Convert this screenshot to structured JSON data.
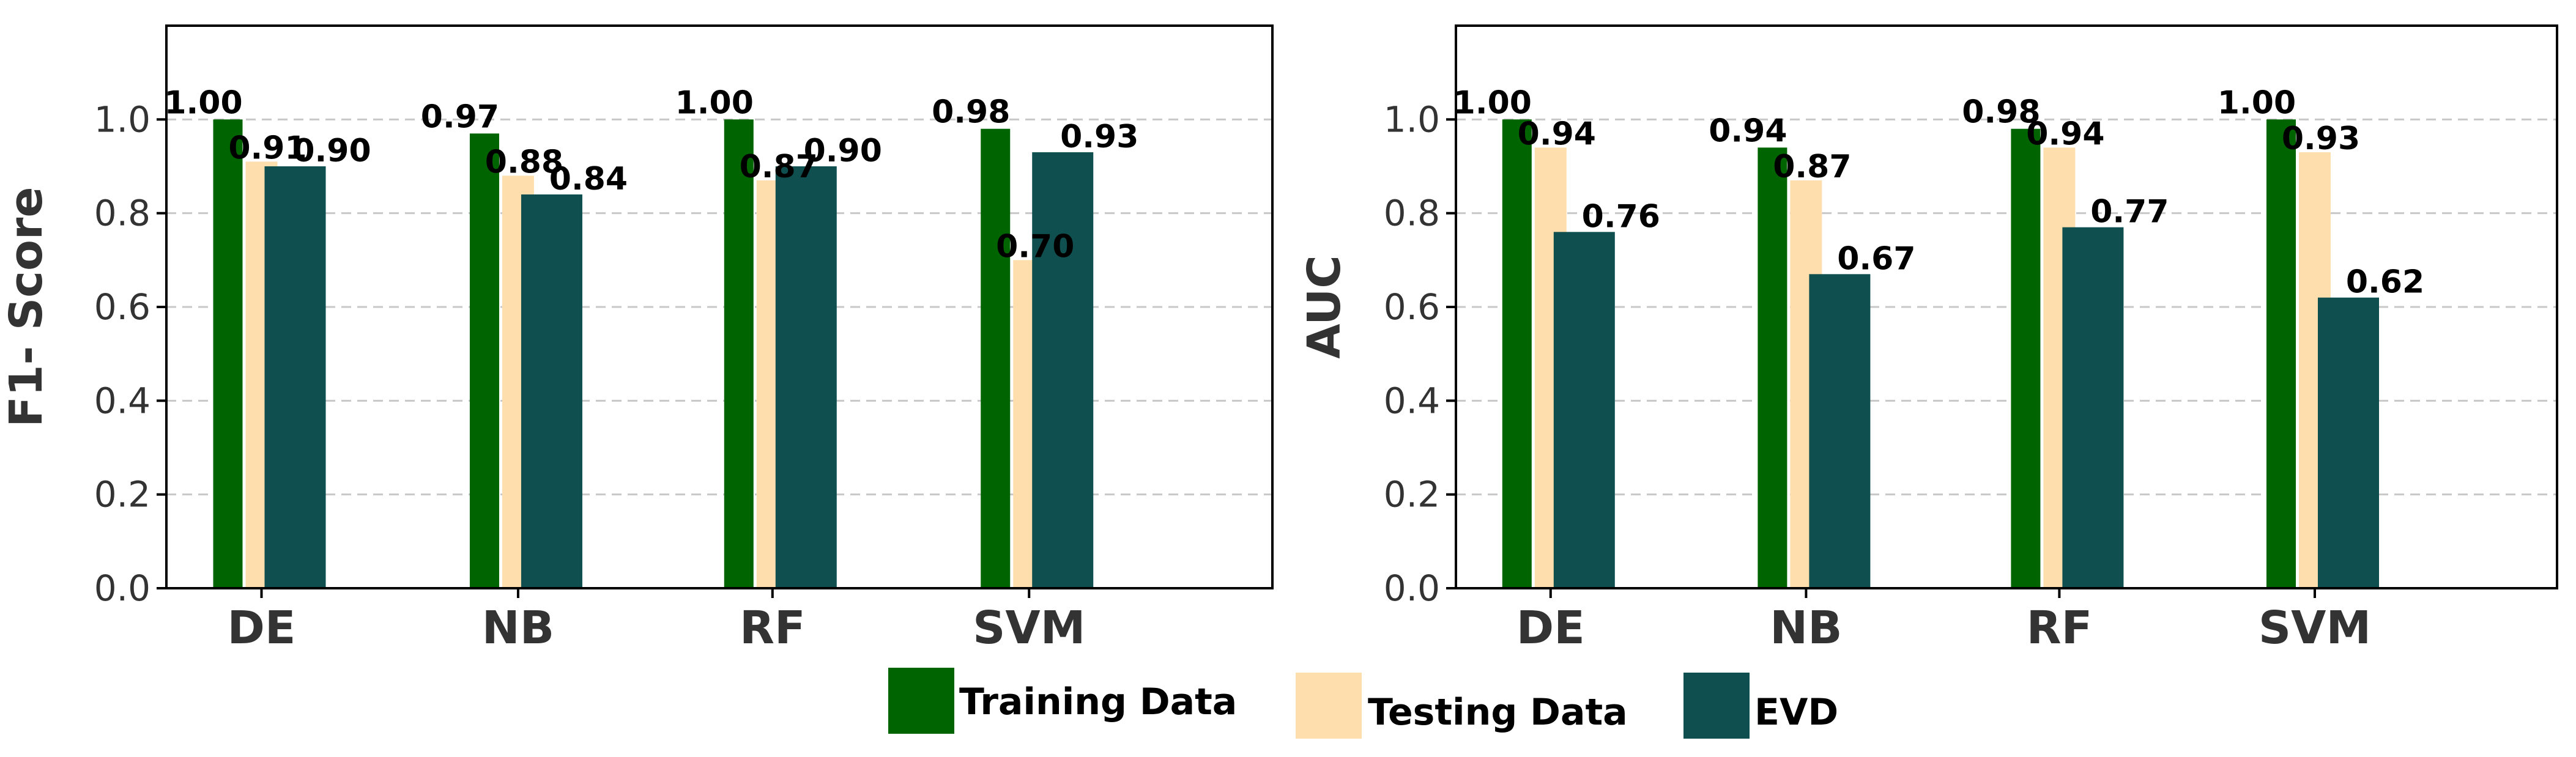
{
  "chart_data": [
    {
      "type": "bar",
      "ylabel": "F1- Score",
      "ylim": [
        0,
        1.2
      ],
      "yticks": [
        "0.0",
        "0.2",
        "0.4",
        "0.6",
        "0.8",
        "1.0"
      ],
      "grid": true,
      "categories": [
        "DE",
        "NB",
        "RF",
        "SVM"
      ],
      "series": [
        {
          "name": "Training Data",
          "values": [
            1.0,
            0.97,
            1.0,
            0.98
          ],
          "labels": [
            "1.00",
            "0.97",
            "1.00",
            "0.98"
          ]
        },
        {
          "name": "Testing Data",
          "values": [
            0.91,
            0.88,
            0.87,
            0.7
          ],
          "labels": [
            "0.91",
            "0.88",
            "0.87",
            "0.70"
          ]
        },
        {
          "name": "EVD",
          "values": [
            0.9,
            0.84,
            0.9,
            0.93
          ],
          "labels": [
            "0.90",
            "0.84",
            "0.90",
            "0.93"
          ]
        }
      ]
    },
    {
      "type": "bar",
      "ylabel": "AUC",
      "ylim": [
        0,
        1.2
      ],
      "yticks": [
        "0.0",
        "0.2",
        "0.4",
        "0.6",
        "0.8",
        "1.0"
      ],
      "grid": true,
      "categories": [
        "DE",
        "NB",
        "RF",
        "SVM"
      ],
      "series": [
        {
          "name": "Training Data",
          "values": [
            1.0,
            0.94,
            0.98,
            1.0
          ],
          "labels": [
            "1.00",
            "0.94",
            "0.98",
            "1.00"
          ]
        },
        {
          "name": "Testing Data",
          "values": [
            0.94,
            0.87,
            0.94,
            0.93
          ],
          "labels": [
            "0.94",
            "0.87",
            "0.94",
            "0.93"
          ]
        },
        {
          "name": "EVD",
          "values": [
            0.76,
            0.67,
            0.77,
            0.62
          ],
          "labels": [
            "0.76",
            "0.67",
            "0.77",
            "0.62"
          ]
        }
      ]
    }
  ],
  "legend": {
    "position": "bottom-center",
    "items": [
      {
        "label": "Training Data",
        "color": "#006400"
      },
      {
        "label": "Testing Data",
        "color": "#FFDEAD"
      },
      {
        "label": "EVD",
        "color": "#0F4F4F"
      }
    ]
  }
}
